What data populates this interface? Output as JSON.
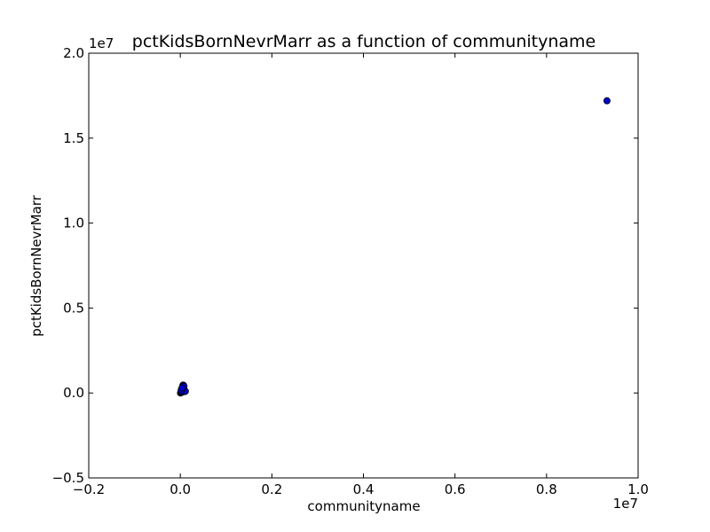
{
  "chart_data": {
    "type": "scatter",
    "title": "pctKidsBornNevrMarr as a function of communityname",
    "xlabel": "communityname",
    "ylabel": "pctKidsBornNevrMarr",
    "xlim": [
      -0.2,
      1.0
    ],
    "ylim": [
      -0.5,
      2.0
    ],
    "x_offset_label": "1e7",
    "y_offset_label": "1e7",
    "xticks": [
      -0.2,
      0.0,
      0.2,
      0.4,
      0.6,
      0.8,
      1.0
    ],
    "xtick_labels": [
      "−0.2",
      "0.0",
      "0.2",
      "0.4",
      "0.6",
      "0.8",
      "1.0"
    ],
    "yticks": [
      -0.5,
      0.0,
      0.5,
      1.0,
      1.5,
      2.0
    ],
    "ytick_labels": [
      "−0.5",
      "0.0",
      "0.5",
      "1.0",
      "1.5",
      "2.0"
    ],
    "grid": false,
    "marker_color": "#0000cc",
    "marker_edge": "#000000",
    "points": [
      {
        "x": 0.932,
        "y": 1.72
      },
      {
        "x": 0.0005,
        "y": 0.0
      },
      {
        "x": 0.001,
        "y": 0.003
      },
      {
        "x": 0.002,
        "y": 0.006
      },
      {
        "x": 0.003,
        "y": 0.01
      },
      {
        "x": 0.004,
        "y": 0.005
      },
      {
        "x": 0.005,
        "y": 0.02
      },
      {
        "x": 0.006,
        "y": 0.04
      },
      {
        "x": 0.006,
        "y": 0.046
      },
      {
        "x": 0.007,
        "y": 0.03
      },
      {
        "x": 0.008,
        "y": 0.015
      },
      {
        "x": 0.009,
        "y": 0.008
      },
      {
        "x": 0.01,
        "y": 0.012
      },
      {
        "x": 0.011,
        "y": 0.01
      },
      {
        "x": 0.003,
        "y": 0.025
      },
      {
        "x": 0.005,
        "y": 0.035
      },
      {
        "x": 0.007,
        "y": 0.045
      },
      {
        "x": 0.002,
        "y": 0.015
      },
      {
        "x": 0.008,
        "y": 0.04
      },
      {
        "x": 0.004,
        "y": 0.03
      }
    ]
  }
}
